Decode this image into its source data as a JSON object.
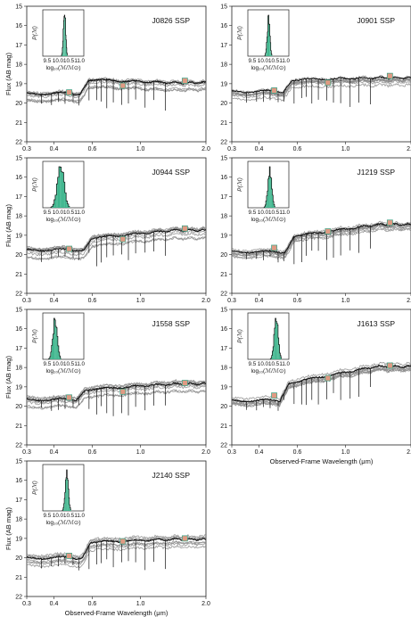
{
  "figure": {
    "ylabel": "Flux (AB mag)",
    "xlabel": "Observed-Frame Wavelength (μm)",
    "inset_ylabel": "P(ℳ)",
    "inset_xlabel": "log₁₀(ℳ/ℳ⊙)",
    "x_ticks": [
      "0.3",
      "0.4",
      "0.6",
      "1.0",
      "2.0"
    ],
    "y_ticks": [
      "15",
      "16",
      "17",
      "18",
      "19",
      "20",
      "21",
      "22"
    ],
    "inset_ticks": [
      "9.5",
      "10.0",
      "10.5",
      "11.0"
    ]
  },
  "chart_data": [
    {
      "type": "line",
      "title": "J0826 SSP",
      "xlim": [
        0.3,
        2.0
      ],
      "ylim": [
        22,
        15
      ],
      "x_scale": "log",
      "show_xlabel": false,
      "show_ylabel": true,
      "sed": {
        "blue": 19.5,
        "break_wl": 0.56,
        "break_mag": 0.7,
        "red": 18.95
      },
      "photometry": [
        {
          "x": 0.47,
          "y": 19.45
        },
        {
          "x": 0.83,
          "y": 19.1
        },
        {
          "x": 1.6,
          "y": 18.85
        }
      ],
      "inset": {
        "center": 10.3,
        "width": 0.05
      }
    },
    {
      "type": "line",
      "title": "J0901 SSP",
      "xlim": [
        0.3,
        2.0
      ],
      "ylim": [
        22,
        15
      ],
      "x_scale": "log",
      "show_xlabel": false,
      "show_ylabel": false,
      "sed": {
        "blue": 19.4,
        "break_wl": 0.55,
        "break_mag": 0.6,
        "red": 18.7
      },
      "photometry": [
        {
          "x": 0.47,
          "y": 19.35
        },
        {
          "x": 0.83,
          "y": 18.95
        },
        {
          "x": 1.6,
          "y": 18.6
        }
      ],
      "inset": {
        "center": 10.25,
        "width": 0.06
      }
    },
    {
      "type": "line",
      "title": "J0944 SSP",
      "xlim": [
        0.3,
        2.0
      ],
      "ylim": [
        22,
        15
      ],
      "x_scale": "log",
      "show_xlabel": false,
      "show_ylabel": true,
      "sed": {
        "blue": 19.75,
        "break_wl": 0.58,
        "break_mag": 0.6,
        "red": 18.75
      },
      "photometry": [
        {
          "x": 0.47,
          "y": 19.7
        },
        {
          "x": 0.83,
          "y": 19.2
        },
        {
          "x": 1.6,
          "y": 18.65
        }
      ],
      "inset": {
        "center": 10.1,
        "width": 0.15
      }
    },
    {
      "type": "line",
      "title": "J1219 SSP",
      "xlim": [
        0.3,
        2.0
      ],
      "ylim": [
        22,
        15
      ],
      "x_scale": "log",
      "show_xlabel": false,
      "show_ylabel": false,
      "sed": {
        "blue": 19.85,
        "break_wl": 0.56,
        "break_mag": 0.8,
        "red": 18.45
      },
      "photometry": [
        {
          "x": 0.47,
          "y": 19.65
        },
        {
          "x": 0.83,
          "y": 18.8
        },
        {
          "x": 1.6,
          "y": 18.35
        }
      ],
      "inset": {
        "center": 10.3,
        "width": 0.09
      }
    },
    {
      "type": "line",
      "title": "J1558 SSP",
      "xlim": [
        0.3,
        2.0
      ],
      "ylim": [
        22,
        15
      ],
      "x_scale": "log",
      "show_xlabel": false,
      "show_ylabel": true,
      "sed": {
        "blue": 19.65,
        "break_wl": 0.54,
        "break_mag": 0.5,
        "red": 18.85
      },
      "photometry": [
        {
          "x": 0.47,
          "y": 19.55
        },
        {
          "x": 0.83,
          "y": 19.25
        },
        {
          "x": 1.6,
          "y": 18.8
        }
      ],
      "inset": {
        "center": 9.85,
        "width": 0.1
      }
    },
    {
      "type": "line",
      "title": "J1613 SSP",
      "xlim": [
        0.3,
        2.0
      ],
      "ylim": [
        22,
        15
      ],
      "x_scale": "log",
      "show_xlabel": true,
      "show_ylabel": false,
      "sed": {
        "blue": 19.7,
        "break_wl": 0.53,
        "break_mag": 0.9,
        "red": 17.95
      },
      "photometry": [
        {
          "x": 0.47,
          "y": 19.45
        },
        {
          "x": 0.83,
          "y": 18.55
        },
        {
          "x": 1.6,
          "y": 17.9
        }
      ],
      "inset": {
        "center": 10.6,
        "width": 0.09
      }
    },
    {
      "type": "line",
      "title": "J2140 SSP",
      "xlim": [
        0.3,
        2.0
      ],
      "ylim": [
        22,
        15
      ],
      "x_scale": "log",
      "show_xlabel": true,
      "show_ylabel": true,
      "sed": {
        "blue": 20.0,
        "break_wl": 0.57,
        "break_mag": 0.8,
        "red": 19.05
      },
      "photometry": [
        {
          "x": 0.47,
          "y": 19.9
        },
        {
          "x": 0.83,
          "y": 19.15
        },
        {
          "x": 1.6,
          "y": 19.0
        }
      ],
      "inset": {
        "center": 10.4,
        "width": 0.07
      }
    }
  ],
  "colors": {
    "model": "#111111",
    "band": "#8a8a8a",
    "photometry_fill": "#e09a83",
    "photometry_edge": "#4aa58a",
    "histogram": "#3cb58c",
    "axis": "#222222"
  }
}
